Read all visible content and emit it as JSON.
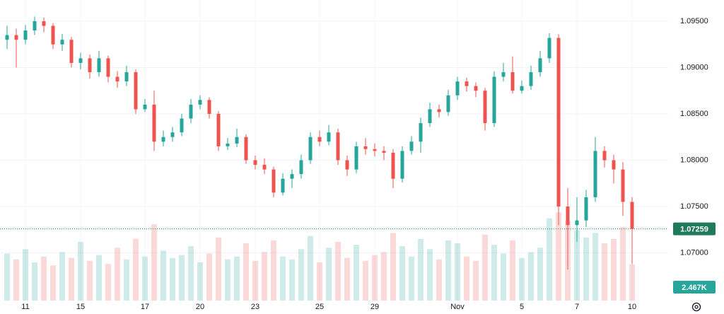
{
  "chart_data": {
    "type": "candlestick",
    "categories": [
      null,
      null,
      "11",
      null,
      null,
      null,
      null,
      null,
      "15",
      null,
      null,
      null,
      null,
      null,
      null,
      "17",
      null,
      null,
      null,
      null,
      null,
      "20",
      null,
      null,
      null,
      null,
      null,
      "23",
      null,
      null,
      null,
      null,
      null,
      null,
      "25",
      null,
      null,
      null,
      null,
      null,
      "29",
      null,
      null,
      null,
      null,
      null,
      null,
      null,
      null,
      "Nov",
      null,
      null,
      null,
      null,
      null,
      null,
      "5",
      null,
      null,
      null,
      null,
      null,
      "7",
      null,
      null,
      null,
      null,
      null,
      "10"
    ],
    "open": [
      1.093,
      1.0935,
      1.093,
      1.094,
      1.095,
      1.0945,
      1.0925,
      1.093,
      1.0905,
      1.091,
      1.0895,
      1.091,
      1.089,
      1.0885,
      1.0895,
      1.0855,
      1.086,
      1.082,
      1.0825,
      1.083,
      1.0845,
      1.086,
      1.0865,
      1.085,
      1.0815,
      1.0818,
      1.0825,
      1.08,
      1.0795,
      1.079,
      1.0765,
      1.078,
      1.0785,
      1.08,
      1.0825,
      1.082,
      1.083,
      1.08,
      1.079,
      1.0815,
      1.0812,
      1.081,
      1.0808,
      1.078,
      1.081,
      1.082,
      1.084,
      1.0855,
      1.0852,
      1.087,
      1.0885,
      1.088,
      1.0875,
      1.084,
      1.089,
      1.0895,
      1.0875,
      1.088,
      1.0895,
      1.091,
      1.0932,
      1.075,
      1.073,
      1.0735,
      1.076,
      1.081,
      1.08,
      1.079,
      1.0755
    ],
    "high": [
      1.0945,
      1.0942,
      1.0946,
      1.0955,
      1.0954,
      1.0948,
      1.0936,
      1.0933,
      1.0916,
      1.0914,
      1.0918,
      1.0913,
      1.0896,
      1.0902,
      1.0898,
      1.0866,
      1.0875,
      1.0832,
      1.0836,
      1.085,
      1.0866,
      1.087,
      1.0868,
      1.0853,
      1.0824,
      1.0834,
      1.0828,
      1.0805,
      1.0802,
      1.0793,
      1.0786,
      1.079,
      1.0806,
      1.083,
      1.0832,
      1.0838,
      1.0834,
      1.0805,
      1.082,
      1.0824,
      1.0818,
      1.0815,
      1.0812,
      1.0815,
      1.0826,
      1.0846,
      1.0862,
      1.086,
      1.0876,
      1.089,
      1.0889,
      1.0884,
      1.0878,
      1.0896,
      1.0905,
      1.0912,
      1.0886,
      1.0902,
      1.0918,
      1.0937,
      1.0936,
      1.077,
      1.076,
      1.0768,
      1.0825,
      1.0815,
      1.0806,
      1.0798,
      1.076
    ],
    "low": [
      1.092,
      1.09,
      1.0925,
      1.0935,
      1.0938,
      1.092,
      1.0918,
      1.09,
      1.0898,
      1.0888,
      1.089,
      1.0884,
      1.0878,
      1.088,
      1.085,
      1.0852,
      1.081,
      1.0815,
      1.082,
      1.0826,
      1.084,
      1.0855,
      1.0845,
      1.081,
      1.0811,
      1.0814,
      1.0796,
      1.079,
      1.0785,
      1.076,
      1.0762,
      1.077,
      1.078,
      1.0796,
      1.0815,
      1.0816,
      1.0795,
      1.0783,
      1.0786,
      1.0806,
      1.0804,
      1.08,
      1.077,
      1.0776,
      1.0806,
      1.0808,
      1.0836,
      1.0846,
      1.0848,
      1.0865,
      1.0874,
      1.0868,
      1.0832,
      1.0836,
      1.0885,
      1.0872,
      1.0872,
      1.0876,
      1.089,
      1.0905,
      1.073,
      1.0682,
      1.0712,
      1.0728,
      1.0755,
      1.0792,
      1.0775,
      1.074,
      1.0688
    ],
    "close": [
      1.0935,
      1.093,
      1.094,
      1.095,
      1.0945,
      1.0925,
      1.093,
      1.0905,
      1.091,
      1.0895,
      1.091,
      1.089,
      1.0885,
      1.0895,
      1.0855,
      1.086,
      1.082,
      1.0825,
      1.083,
      1.0845,
      1.086,
      1.0865,
      1.085,
      1.0815,
      1.0818,
      1.0825,
      1.08,
      1.0795,
      1.079,
      1.0765,
      1.078,
      1.0785,
      1.08,
      1.0825,
      1.082,
      1.083,
      1.08,
      1.079,
      1.0815,
      1.0812,
      1.081,
      1.0808,
      1.078,
      1.081,
      1.082,
      1.084,
      1.0855,
      1.0852,
      1.087,
      1.0885,
      1.088,
      1.0875,
      1.084,
      1.089,
      1.0895,
      1.0875,
      1.088,
      1.0895,
      1.091,
      1.0932,
      1.075,
      1.073,
      1.0735,
      1.076,
      1.081,
      1.08,
      1.079,
      1.0755,
      1.07259
    ],
    "volume": [
      3200,
      2800,
      3500,
      2600,
      3000,
      2400,
      3300,
      2900,
      4000,
      2700,
      3100,
      2500,
      3600,
      2800,
      4200,
      3000,
      5200,
      3400,
      2900,
      3100,
      3700,
      2600,
      3200,
      4300,
      2800,
      3000,
      3900,
      2700,
      3300,
      4100,
      3000,
      2800,
      3500,
      4400,
      2600,
      3600,
      4000,
      2900,
      3800,
      2700,
      3100,
      3300,
      4600,
      3700,
      3000,
      4200,
      3500,
      2800,
      4100,
      3900,
      3000,
      2700,
      4500,
      3800,
      3200,
      4100,
      2900,
      3300,
      3600,
      5600,
      6000,
      5400,
      4800,
      4300,
      4600,
      3900,
      4200,
      5000,
      2467
    ],
    "volume_labels": [
      null,
      null,
      null,
      null,
      null,
      null,
      null,
      null,
      null,
      null,
      null,
      null,
      null,
      null,
      null,
      null,
      null,
      null,
      null,
      null,
      null,
      null,
      null,
      null,
      null,
      null,
      null,
      null,
      null,
      null,
      null,
      null,
      null,
      null,
      null,
      null,
      null,
      null,
      null,
      null,
      null,
      null,
      null,
      null,
      null,
      null,
      null,
      null,
      null,
      null,
      null,
      null,
      null,
      null,
      null,
      null,
      null,
      null,
      null,
      null,
      null,
      null,
      null,
      null,
      null,
      null,
      null,
      null,
      "2.467K"
    ],
    "volume_lim": [
      0,
      6500
    ],
    "up_color": "#26a69a",
    "down_color": "#ef5350",
    "ylim": [
      1.06485,
      1.09729
    ],
    "yticks": [
      {
        "value": 1.07,
        "label": "1.07000"
      },
      {
        "value": 1.075,
        "label": "1.07500"
      },
      {
        "value": 1.08,
        "label": "1.08000"
      },
      {
        "value": 1.085,
        "label": "1.08500"
      },
      {
        "value": 1.09,
        "label": "1.09000"
      },
      {
        "value": 1.095,
        "label": "1.09500"
      }
    ],
    "grid": true
  }
}
